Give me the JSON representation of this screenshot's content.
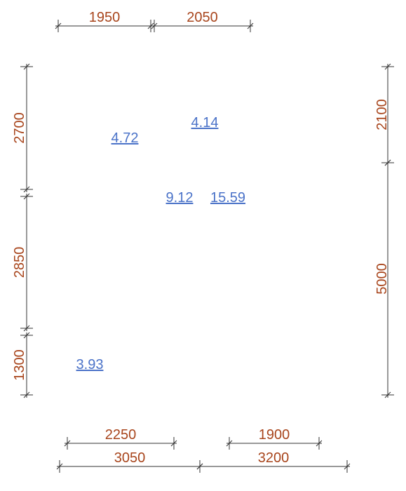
{
  "dimensions": {
    "top": [
      "1950",
      "2050"
    ],
    "left": [
      "2700",
      "2850",
      "1300"
    ],
    "right": [
      "2100",
      "5000"
    ],
    "bottom_inner": [
      "2250",
      "1900"
    ],
    "bottom_outer": [
      "3050",
      "3200"
    ]
  },
  "rooms": [
    {
      "area": "4.72"
    },
    {
      "area": "4.14"
    },
    {
      "area": "9.12"
    },
    {
      "area": "15.59"
    },
    {
      "area": "3.93"
    }
  ]
}
